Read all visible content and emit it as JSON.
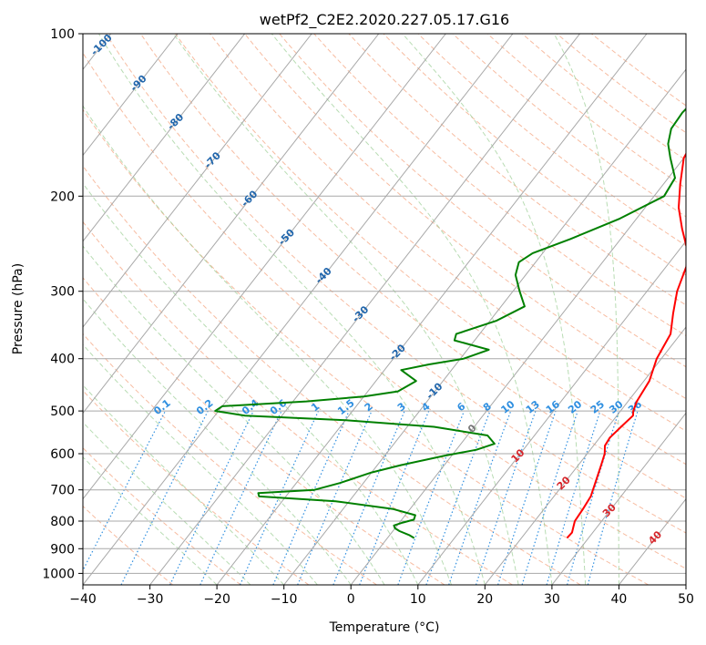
{
  "chart_data": {
    "type": "line",
    "diagram": "skew-t",
    "title": "wetPf2_C2E2.2020.227.05.17.G16",
    "xlabel": "Temperature (°C)",
    "ylabel": "Pressure (hPa)",
    "xlim": [
      -40,
      50
    ],
    "ylim": [
      1050,
      100
    ],
    "y_scale": "log",
    "grid": true,
    "x_ticks": [
      -40,
      -30,
      -20,
      -10,
      0,
      10,
      20,
      30,
      40,
      50
    ],
    "y_ticks": [
      100,
      200,
      300,
      400,
      500,
      600,
      700,
      800,
      900,
      1000
    ],
    "series": [
      {
        "color": "#ff0000",
        "points": [
          [
            100,
            3.5
          ],
          [
            110,
            0.5
          ],
          [
            120,
            -0.5
          ],
          [
            130,
            -1.2
          ],
          [
            140,
            -1.2
          ],
          [
            150,
            -1.0
          ],
          [
            170,
            0.0
          ],
          [
            190,
            2.5
          ],
          [
            210,
            5.0
          ],
          [
            230,
            8.0
          ],
          [
            250,
            11.0
          ],
          [
            270,
            13.0
          ],
          [
            300,
            14.5
          ],
          [
            330,
            16.5
          ],
          [
            360,
            18.5
          ],
          [
            400,
            19.3
          ],
          [
            440,
            20.8
          ],
          [
            480,
            21.3
          ],
          [
            500,
            21.9
          ],
          [
            510,
            22.4
          ],
          [
            530,
            22.0
          ],
          [
            560,
            21.5
          ],
          [
            580,
            21.7
          ],
          [
            600,
            22.6
          ],
          [
            630,
            23.4
          ],
          [
            680,
            24.6
          ],
          [
            720,
            25.5
          ],
          [
            760,
            25.8
          ],
          [
            800,
            26.0
          ],
          [
            840,
            26.9
          ],
          [
            860,
            26.8
          ]
        ]
      },
      {
        "color": "#008000",
        "points": [
          [
            100,
            0.5
          ],
          [
            110,
            -1.5
          ],
          [
            120,
            -3.5
          ],
          [
            130,
            -5.0
          ],
          [
            140,
            -5.5
          ],
          [
            150,
            -5.3
          ],
          [
            160,
            -4.0
          ],
          [
            170,
            -2.0
          ],
          [
            185,
            1.0
          ],
          [
            200,
            1.5
          ],
          [
            220,
            -2.5
          ],
          [
            240,
            -7.5
          ],
          [
            255,
            -11.5
          ],
          [
            265,
            -12.5
          ],
          [
            280,
            -11.5
          ],
          [
            300,
            -9.0
          ],
          [
            320,
            -6.5
          ],
          [
            340,
            -9.0
          ],
          [
            360,
            -13.5
          ],
          [
            370,
            -13.0
          ],
          [
            385,
            -6.8
          ],
          [
            400,
            -9.5
          ],
          [
            410,
            -14.0
          ],
          [
            420,
            -17.5
          ],
          [
            440,
            -14.0
          ],
          [
            460,
            -15.5
          ],
          [
            470,
            -20.0
          ],
          [
            480,
            -28.0
          ],
          [
            490,
            -40.0
          ],
          [
            500,
            -40.5
          ],
          [
            510,
            -35.5
          ],
          [
            520,
            -20.0
          ],
          [
            535,
            -6.0
          ],
          [
            555,
            3.0
          ],
          [
            575,
            5.0
          ],
          [
            590,
            3.0
          ],
          [
            605,
            -1.0
          ],
          [
            630,
            -6.5
          ],
          [
            650,
            -10.0
          ],
          [
            680,
            -13.5
          ],
          [
            700,
            -16.5
          ],
          [
            710,
            -24.5
          ],
          [
            720,
            -24.0
          ],
          [
            735,
            -12.0
          ],
          [
            760,
            -2.5
          ],
          [
            780,
            1.5
          ],
          [
            795,
            1.8
          ],
          [
            805,
            0.5
          ],
          [
            815,
            -0.5
          ],
          [
            825,
            0.0
          ],
          [
            835,
            1.0
          ],
          [
            850,
            3.0
          ],
          [
            860,
            4.0
          ]
        ]
      }
    ],
    "dry_adiabat_labels": [
      "-100",
      "-90",
      "-80",
      "-70",
      "-60",
      "-50",
      "-40",
      "-30",
      "-20",
      "-10",
      "0",
      "10",
      "20",
      "30",
      "40"
    ],
    "mixing_ratio_labels": [
      "0.1",
      "0.2",
      "0.4",
      "0.6",
      "1",
      "1.5",
      "2",
      "3",
      "4",
      "6",
      "8",
      "10",
      "13",
      "16",
      "20",
      "25",
      "30",
      "36"
    ]
  },
  "colors": {
    "temperature": "#ff0000",
    "dewpoint": "#008000",
    "isotherm": "#a8a8a8",
    "isobar": "#a8a8a8",
    "dry_adiabat": "#f4a582",
    "moist_adiabat": "#92c98a",
    "mixing_ratio": "#2f8fe0",
    "label_blue": "#2166ac",
    "label_red": "#d6262b",
    "label_gray": "#777777"
  }
}
